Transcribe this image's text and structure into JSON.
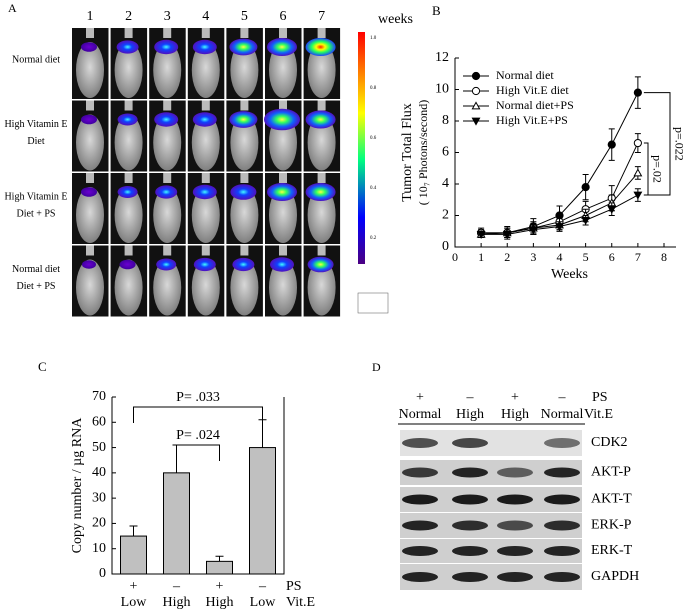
{
  "panels": {
    "a": {
      "label": "A",
      "columns": [
        "1",
        "2",
        "3",
        "4",
        "5",
        "6",
        "7"
      ],
      "rows": [
        [
          "Normal diet"
        ],
        [
          "High Vitamin E",
          "Diet"
        ],
        [
          "High Vitamin E",
          "Diet + PS"
        ],
        [
          "Normal diet",
          "Diet + PS"
        ]
      ],
      "scale_title": "weeks",
      "scale_ticks": [
        "1.0",
        "0.8",
        "0.6",
        "0.4",
        "0.2"
      ]
    },
    "d": {
      "label": "D",
      "treatment_signs": [
        "+",
        "–",
        "+",
        "–"
      ],
      "treatment_name": "PS",
      "diets": [
        "Normal",
        "High",
        "High",
        "Normal"
      ],
      "diet_name": "Vit.E",
      "bands": [
        "CDK2",
        "AKT-P",
        "AKT-T",
        "ERK-P",
        "ERK-T",
        "GAPDH"
      ]
    }
  },
  "chart_data": [
    {
      "type": "line",
      "label": "B",
      "ylabel": [
        "Tumor Total Flux",
        "( 10₇ Photons/second)"
      ],
      "xlabel": "Weeks",
      "x": [
        1,
        2,
        3,
        4,
        5,
        6,
        7
      ],
      "xlim": [
        0,
        8
      ],
      "xticks": [
        0,
        1,
        2,
        3,
        4,
        5,
        6,
        7,
        8
      ],
      "ylim": [
        0,
        12
      ],
      "yticks": [
        0,
        2,
        4,
        6,
        8,
        10,
        12
      ],
      "series": [
        {
          "name": "Normal diet",
          "color": "#000000",
          "marker": "filled-circle",
          "values": [
            0.9,
            0.9,
            1.3,
            2.0,
            3.8,
            6.5,
            9.8
          ],
          "errors": [
            0.3,
            0.4,
            0.5,
            0.6,
            0.8,
            1.0,
            1.0
          ]
        },
        {
          "name": "High Vit.E diet",
          "color": "#000000",
          "marker": "open-circle",
          "values": [
            0.9,
            0.9,
            1.2,
            1.6,
            2.4,
            3.1,
            6.6
          ],
          "errors": [
            0.2,
            0.3,
            0.4,
            0.5,
            0.5,
            0.8,
            0.6
          ]
        },
        {
          "name": "Normal diet+PS",
          "color": "#000000",
          "marker": "open-triangle",
          "values": [
            0.8,
            0.9,
            1.2,
            1.4,
            2.0,
            2.8,
            4.7
          ],
          "errors": [
            0.2,
            0.3,
            0.3,
            0.4,
            0.4,
            0.5,
            0.4
          ]
        },
        {
          "name": "High Vit.E+PS",
          "color": "#000000",
          "marker": "filled-triangle-down",
          "values": [
            0.8,
            0.8,
            1.1,
            1.3,
            1.7,
            2.4,
            3.3
          ],
          "errors": [
            0.2,
            0.2,
            0.3,
            0.3,
            0.3,
            0.4,
            0.4
          ]
        }
      ],
      "annotations": [
        "p=.022",
        "p=.02"
      ]
    },
    {
      "type": "bar",
      "label": "C",
      "ylabel": "Copy number / µg RNA",
      "categories": [
        "+",
        "–",
        "+",
        "–"
      ],
      "categories_2": [
        "Low",
        "High",
        "High",
        "Low"
      ],
      "category_title": "PS",
      "category_2_title": "Vit.E",
      "values": [
        15,
        40,
        5,
        50
      ],
      "errors": [
        4,
        11,
        2,
        11
      ],
      "color": "#c0c0c0",
      "ylim": [
        0,
        70
      ],
      "yticks": [
        0,
        10,
        20,
        30,
        40,
        50,
        60,
        70
      ],
      "annotations": [
        "P= .033",
        "P= .024"
      ]
    }
  ]
}
